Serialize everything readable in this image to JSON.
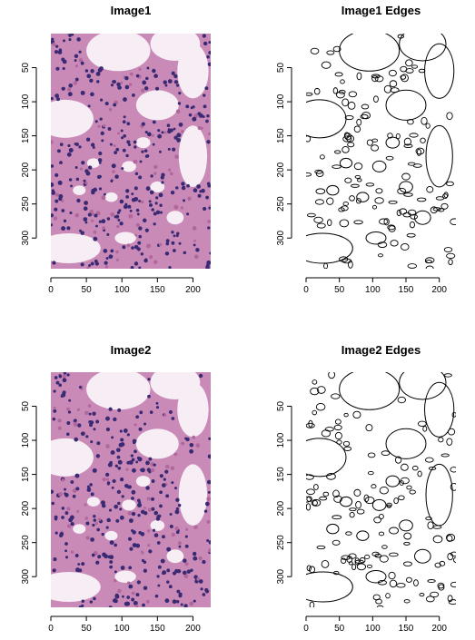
{
  "chart_data": [
    {
      "type": "image",
      "title": "Image1",
      "xlim": [
        0,
        225
      ],
      "ylim": [
        0,
        345
      ],
      "x_reversed": false,
      "y_reversed": true,
      "xticks": [
        0,
        50,
        100,
        150,
        200
      ],
      "yticks": [
        50,
        100,
        150,
        200,
        250,
        300
      ],
      "xtick_labels": [
        "0",
        "50",
        "100",
        "150",
        "200"
      ],
      "ytick_labels": [
        "50",
        "100",
        "150",
        "200",
        "250",
        "300"
      ],
      "content": "tissue"
    },
    {
      "type": "image",
      "title": "Image1 Edges",
      "xlim": [
        0,
        225
      ],
      "ylim": [
        0,
        345
      ],
      "y_reversed": true,
      "xticks": [
        0,
        50,
        100,
        150,
        200
      ],
      "yticks": [
        50,
        100,
        150,
        200,
        250,
        300
      ],
      "xtick_labels": [
        "0",
        "50",
        "100",
        "150",
        "200"
      ],
      "ytick_labels": [
        "50",
        "100",
        "150",
        "200",
        "250",
        "300"
      ],
      "content": "edges"
    },
    {
      "type": "image",
      "title": "Image2",
      "xlim": [
        0,
        225
      ],
      "ylim": [
        0,
        345
      ],
      "y_reversed": true,
      "xticks": [
        0,
        50,
        100,
        150,
        200
      ],
      "yticks": [
        50,
        100,
        150,
        200,
        250,
        300
      ],
      "xtick_labels": [
        "0",
        "50",
        "100",
        "150",
        "200"
      ],
      "ytick_labels": [
        "50",
        "100",
        "150",
        "200",
        "250",
        "300"
      ],
      "content": "tissue"
    },
    {
      "type": "image",
      "title": "Image2 Edges",
      "xlim": [
        0,
        225
      ],
      "ylim": [
        0,
        345
      ],
      "y_reversed": true,
      "xticks": [
        0,
        50,
        100,
        150,
        200
      ],
      "yticks": [
        50,
        100,
        150,
        200,
        250,
        300
      ],
      "xtick_labels": [
        "0",
        "50",
        "100",
        "150",
        "200"
      ],
      "ytick_labels": [
        "50",
        "100",
        "150",
        "200",
        "250",
        "300"
      ],
      "content": "edges"
    }
  ],
  "colors": {
    "tissue_background": "#f6eef4",
    "tissue_stroma": "#c98ab8",
    "tissue_stroma_dark": "#b0679c",
    "nuclei": "#3a2a73",
    "edge_line": "#000000"
  }
}
